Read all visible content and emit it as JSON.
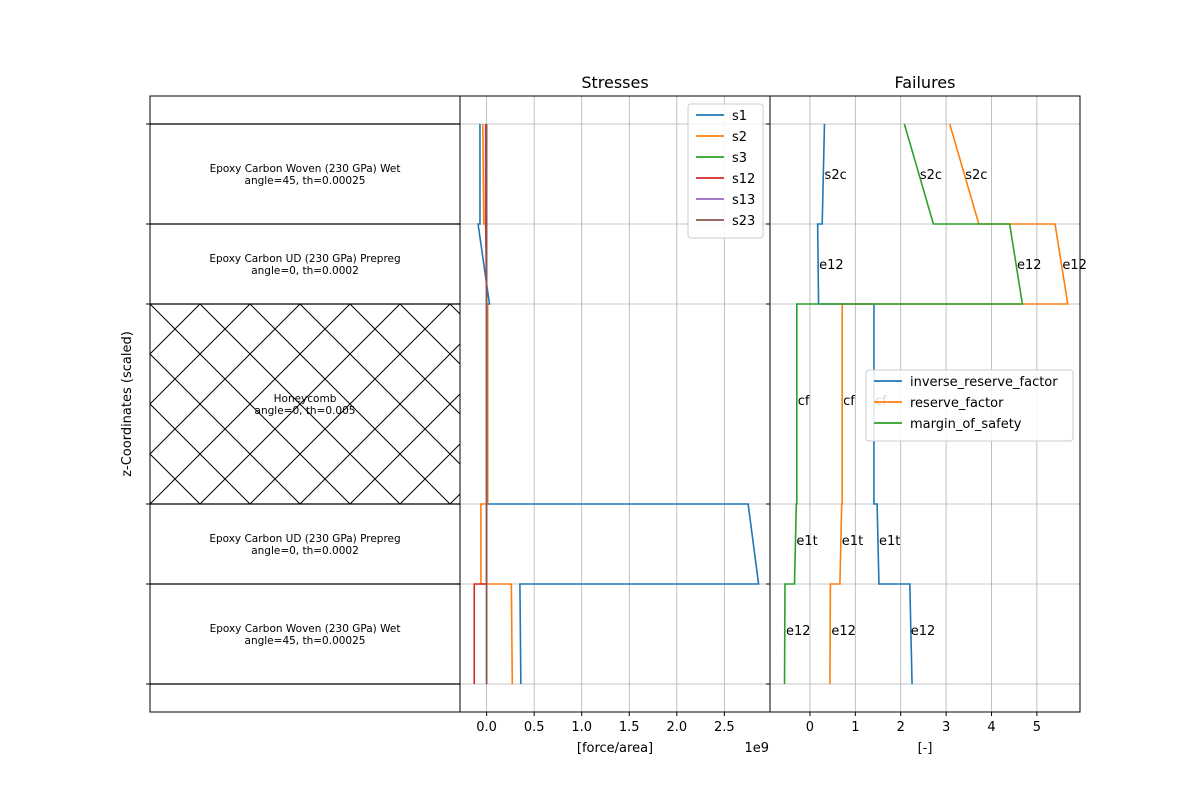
{
  "chart_data": [
    {
      "type": "table",
      "ylabel": "z-Coordinates (scaled)",
      "layers": [
        {
          "material": "Epoxy Carbon Woven (230 GPa) Wet",
          "props": "angle=45, th=0.00025"
        },
        {
          "material": "Epoxy Carbon UD (230 GPa) Prepreg",
          "props": "angle=0, th=0.0002"
        },
        {
          "material": "Honeycomb",
          "props": "angle=0, th=0.005",
          "hatched": true
        },
        {
          "material": "Epoxy Carbon UD (230 GPa) Prepreg",
          "props": "angle=0, th=0.0002"
        },
        {
          "material": "Epoxy Carbon Woven (230 GPa) Wet",
          "props": "angle=45, th=0.00025"
        }
      ]
    },
    {
      "type": "line",
      "title": "Stresses",
      "xlabel": "[force/area]",
      "x_multiplier": "1e9",
      "xlim": [
        -0.28,
        2.98
      ],
      "x_ticks": [
        {
          "v": 0.0,
          "label": "0.0"
        },
        {
          "v": 0.5,
          "label": "0.5"
        },
        {
          "v": 1.0,
          "label": "1.0"
        },
        {
          "v": 1.5,
          "label": "1.5"
        },
        {
          "v": 2.0,
          "label": "2.0"
        },
        {
          "v": 2.5,
          "label": "2.5"
        }
      ],
      "grid": true,
      "legend_position": "top-right",
      "z_levels": [
        0.0,
        0.25,
        0.45,
        0.95,
        1.15,
        1.4
      ],
      "series": [
        {
          "name": "s1",
          "color": "#1f77b4",
          "points": [
            [
              0.36,
              0.0
            ],
            [
              0.35,
              0.25
            ],
            [
              2.86,
              0.25
            ],
            [
              2.75,
              0.45
            ],
            [
              0.01,
              0.45
            ],
            [
              0.01,
              0.95
            ],
            [
              0.03,
              0.95
            ],
            [
              -0.09,
              1.15
            ],
            [
              -0.07,
              1.15
            ],
            [
              -0.07,
              1.4
            ]
          ]
        },
        {
          "name": "s2",
          "color": "#ff7f0e",
          "points": [
            [
              0.27,
              0.0
            ],
            [
              0.26,
              0.25
            ],
            [
              -0.06,
              0.25
            ],
            [
              -0.06,
              0.45
            ],
            [
              0.01,
              0.45
            ],
            [
              0.01,
              0.95
            ],
            [
              0.0,
              0.95
            ],
            [
              0.0,
              1.15
            ],
            [
              -0.03,
              1.15
            ],
            [
              -0.04,
              1.4
            ]
          ]
        },
        {
          "name": "s3",
          "color": "#2ca02c",
          "points": [
            [
              0.0,
              0.0
            ],
            [
              0.0,
              1.4
            ]
          ]
        },
        {
          "name": "s12",
          "color": "#d62728",
          "points": [
            [
              -0.13,
              0.0
            ],
            [
              -0.13,
              0.25
            ],
            [
              0.0,
              0.25
            ],
            [
              0.0,
              0.95
            ],
            [
              -0.01,
              1.15
            ],
            [
              -0.01,
              1.4
            ]
          ]
        },
        {
          "name": "s13",
          "color": "#9467bd",
          "points": [
            [
              0.0,
              0.0
            ],
            [
              0.0,
              1.4
            ]
          ]
        },
        {
          "name": "s23",
          "color": "#8c564b",
          "points": [
            [
              0.0,
              0.0
            ],
            [
              0.0,
              1.4
            ]
          ]
        }
      ]
    },
    {
      "type": "line",
      "title": "Failures",
      "xlabel": "[-]",
      "xlim": [
        -0.88,
        5.95
      ],
      "x_ticks": [
        {
          "v": 0,
          "label": "0"
        },
        {
          "v": 1,
          "label": "1"
        },
        {
          "v": 2,
          "label": "2"
        },
        {
          "v": 3,
          "label": "3"
        },
        {
          "v": 4,
          "label": "4"
        },
        {
          "v": 5,
          "label": "5"
        }
      ],
      "grid": true,
      "legend_position": "center-right",
      "series": [
        {
          "name": "inverse_reserve_factor",
          "color": "#1f77b4",
          "points": [
            [
              2.25,
              0.0
            ],
            [
              2.2,
              0.25
            ],
            [
              1.52,
              0.25
            ],
            [
              1.48,
              0.45
            ],
            [
              1.41,
              0.45
            ],
            [
              1.41,
              0.95
            ],
            [
              0.19,
              0.95
            ],
            [
              0.17,
              1.15
            ],
            [
              0.27,
              1.15
            ],
            [
              0.32,
              1.4
            ]
          ]
        },
        {
          "name": "reserve_factor",
          "color": "#ff7f0e",
          "points": [
            [
              0.44,
              0.0
            ],
            [
              0.45,
              0.25
            ],
            [
              0.66,
              0.25
            ],
            [
              0.7,
              0.45
            ],
            [
              0.71,
              0.45
            ],
            [
              0.71,
              0.95
            ],
            [
              5.68,
              0.95
            ],
            [
              5.4,
              1.15
            ],
            [
              3.72,
              1.15
            ],
            [
              3.08,
              1.4
            ]
          ]
        },
        {
          "name": "margin_of_safety",
          "color": "#2ca02c",
          "points": [
            [
              -0.56,
              0.0
            ],
            [
              -0.55,
              0.25
            ],
            [
              -0.34,
              0.25
            ],
            [
              -0.3,
              0.45
            ],
            [
              -0.29,
              0.45
            ],
            [
              -0.29,
              0.95
            ],
            [
              4.68,
              0.95
            ],
            [
              4.4,
              1.15
            ],
            [
              2.72,
              1.15
            ],
            [
              2.08,
              1.4
            ]
          ]
        }
      ],
      "annotations": [
        {
          "text": "e12",
          "x": -0.55,
          "y": 0.135
        },
        {
          "text": "e12",
          "x": 0.45,
          "y": 0.135
        },
        {
          "text": "e12",
          "x": 2.2,
          "y": 0.135
        },
        {
          "text": "e1t",
          "x": -0.32,
          "y": 0.36
        },
        {
          "text": "e1t",
          "x": 0.68,
          "y": 0.36
        },
        {
          "text": "e1t",
          "x": 1.5,
          "y": 0.36
        },
        {
          "text": "cf",
          "x": -0.29,
          "y": 0.71
        },
        {
          "text": "cf",
          "x": 0.71,
          "y": 0.71
        },
        {
          "text": "cf",
          "x": 1.41,
          "y": 0.71
        },
        {
          "text": "e12",
          "x": 0.18,
          "y": 1.05
        },
        {
          "text": "e12",
          "x": 4.54,
          "y": 1.05
        },
        {
          "text": "e12",
          "x": 5.54,
          "y": 1.05
        },
        {
          "text": "s2c",
          "x": 0.3,
          "y": 1.275
        },
        {
          "text": "s2c",
          "x": 2.4,
          "y": 1.275
        },
        {
          "text": "s2c",
          "x": 3.4,
          "y": 1.275
        }
      ]
    }
  ]
}
